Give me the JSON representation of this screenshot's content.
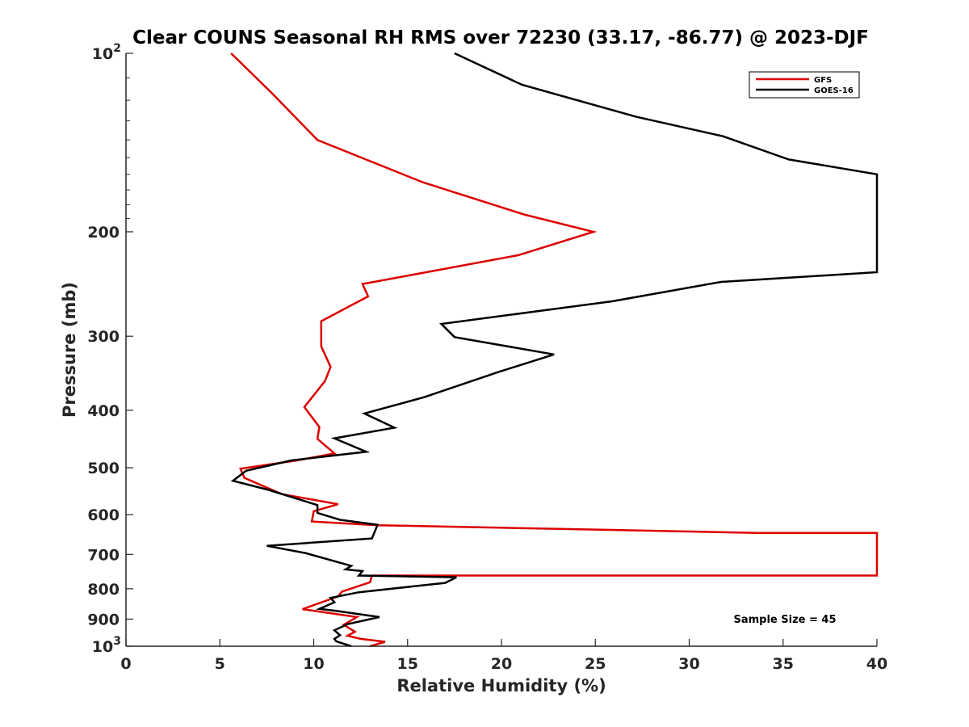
{
  "chart_data": {
    "type": "line",
    "title": "Clear COUNS Seasonal RH RMS over 72230 (33.17, -86.77) @ 2023-DJF",
    "xlabel": "Relative Humidity (%)",
    "ylabel": "Pressure (mb)",
    "xlim": [
      0,
      40
    ],
    "ylim": [
      100,
      1000
    ],
    "yscale": "log",
    "y_reversed": true,
    "x_ticks": [
      "0",
      "5",
      "10",
      "15",
      "20",
      "25",
      "30",
      "35",
      "40"
    ],
    "y_ticks": [
      {
        "value": 100,
        "label": "10",
        "sup": "2"
      },
      {
        "value": 200,
        "label": "200",
        "sup": ""
      },
      {
        "value": 300,
        "label": "300",
        "sup": ""
      },
      {
        "value": 400,
        "label": "400",
        "sup": ""
      },
      {
        "value": 500,
        "label": "500",
        "sup": ""
      },
      {
        "value": 600,
        "label": "600",
        "sup": ""
      },
      {
        "value": 700,
        "label": "700",
        "sup": ""
      },
      {
        "value": 800,
        "label": "800",
        "sup": ""
      },
      {
        "value": 900,
        "label": "900",
        "sup": ""
      },
      {
        "value": 1000,
        "label": "10",
        "sup": "3"
      }
    ],
    "legend_position": "top-right",
    "grid": false,
    "series": [
      {
        "name": "GFS",
        "color": "#dd0000",
        "points": [
          [
            5.6,
            100
          ],
          [
            7.8,
            117
          ],
          [
            10.2,
            140
          ],
          [
            15.8,
            165
          ],
          [
            21.2,
            187
          ],
          [
            24.9,
            200
          ],
          [
            20.9,
            219
          ],
          [
            12.6,
            245
          ],
          [
            12.9,
            257
          ],
          [
            10.4,
            283
          ],
          [
            10.4,
            312
          ],
          [
            10.9,
            338
          ],
          [
            10.6,
            357
          ],
          [
            9.5,
            395
          ],
          [
            10.3,
            427
          ],
          [
            10.2,
            447
          ],
          [
            11.1,
            473
          ],
          [
            9.1,
            486
          ],
          [
            6.1,
            502
          ],
          [
            6.3,
            520
          ],
          [
            8.3,
            554
          ],
          [
            11.3,
            576
          ],
          [
            10.0,
            592
          ],
          [
            9.9,
            616
          ],
          [
            13.4,
            625
          ],
          [
            33.6,
            644
          ],
          [
            40,
            644
          ],
          [
            40,
            760
          ],
          [
            13.1,
            760
          ],
          [
            13.0,
            780
          ],
          [
            11.5,
            809
          ],
          [
            11.3,
            824
          ],
          [
            9.4,
            866
          ],
          [
            12.3,
            893
          ],
          [
            11.6,
            920
          ],
          [
            12.2,
            945
          ],
          [
            11.8,
            960
          ],
          [
            12.5,
            972
          ],
          [
            13.8,
            983
          ],
          [
            13.0,
            1000
          ]
        ]
      },
      {
        "name": "GOES-16",
        "color": "#000000",
        "points": [
          [
            17.5,
            100
          ],
          [
            21.1,
            113
          ],
          [
            27.2,
            128
          ],
          [
            31.8,
            138
          ],
          [
            35.3,
            151
          ],
          [
            40,
            160
          ],
          [
            40,
            234
          ],
          [
            31.7,
            243
          ],
          [
            25.9,
            262
          ],
          [
            16.8,
            286
          ],
          [
            17.5,
            301
          ],
          [
            22.8,
            322
          ],
          [
            19.8,
            345
          ],
          [
            15.9,
            380
          ],
          [
            12.7,
            405
          ],
          [
            14.3,
            428
          ],
          [
            11.1,
            446
          ],
          [
            12.8,
            470
          ],
          [
            8.8,
            486
          ],
          [
            6.4,
            506
          ],
          [
            5.7,
            526
          ],
          [
            7.6,
            545
          ],
          [
            10.2,
            578
          ],
          [
            10.2,
            596
          ],
          [
            11.4,
            612
          ],
          [
            13.4,
            624
          ],
          [
            13.1,
            658
          ],
          [
            7.5,
            677
          ],
          [
            9.6,
            697
          ],
          [
            12.0,
            732
          ],
          [
            11.7,
            742
          ],
          [
            12.6,
            747
          ],
          [
            12.4,
            760
          ],
          [
            17.6,
            765
          ],
          [
            17.0,
            782
          ],
          [
            12.4,
            811
          ],
          [
            10.9,
            829
          ],
          [
            11.1,
            843
          ],
          [
            10.3,
            865
          ],
          [
            11.2,
            872
          ],
          [
            13.5,
            893
          ],
          [
            11.8,
            918
          ],
          [
            11.1,
            940
          ],
          [
            11.4,
            958
          ],
          [
            11.1,
            972
          ],
          [
            11.2,
            981
          ],
          [
            12.0,
            1000
          ]
        ]
      }
    ],
    "annotations": [
      "Sample Size = 45"
    ]
  }
}
